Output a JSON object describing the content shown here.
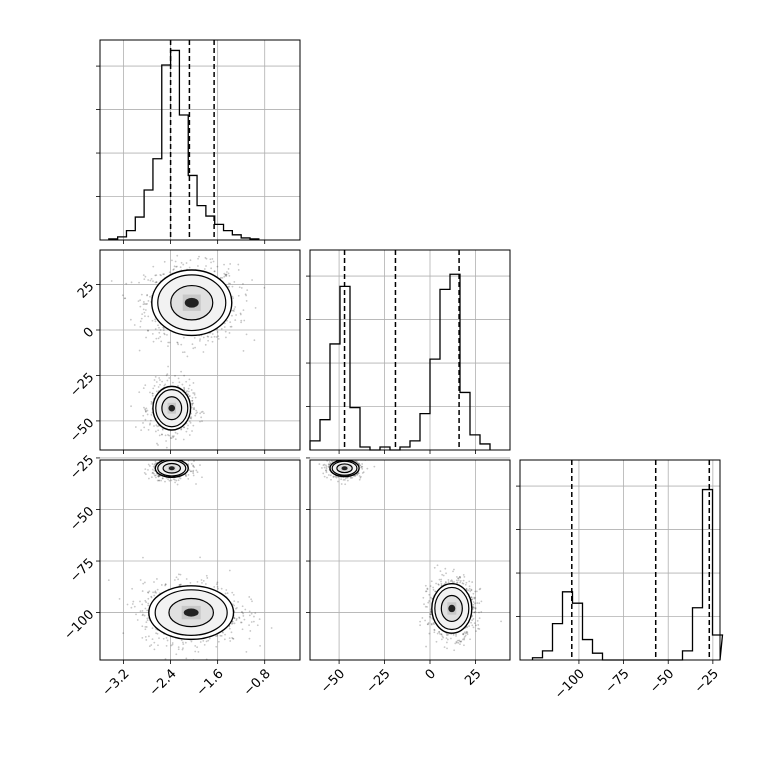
{
  "chart_data": [
    {
      "panel": "hist-param-1",
      "type": "histogram",
      "xlim": [
        -3.6,
        -0.2
      ],
      "bins_start": -3.45,
      "bin_width": 0.15,
      "values": [
        1,
        3,
        9,
        22,
        48,
        78,
        168,
        182,
        120,
        62,
        33,
        23,
        15,
        9,
        5,
        2,
        1
      ],
      "ymax": 192,
      "quantile_lines": [
        -2.4,
        -2.08,
        -1.66
      ],
      "xticks": [
        -3.2,
        -2.4,
        -1.6,
        -0.8
      ],
      "grid": true
    },
    {
      "panel": "hist-param-2",
      "type": "histogram",
      "xlim": [
        -66,
        44
      ],
      "bins_start": -66,
      "bin_width": 5.5,
      "values": [
        3,
        10,
        35,
        54,
        14,
        1,
        0,
        1,
        0,
        1,
        3,
        12,
        30,
        53,
        58,
        19,
        5,
        2
      ],
      "ymax": 66,
      "quantile_lines": [
        -47,
        -19,
        16
      ],
      "yticks": [],
      "grid": true
    },
    {
      "panel": "hist-param-3",
      "type": "histogram",
      "xlim": [
        -133,
        -21
      ],
      "bins_start": -126,
      "bin_width": 5.6,
      "values": [
        1,
        4,
        16,
        30,
        25,
        9,
        3,
        0,
        0,
        0,
        0,
        0,
        0,
        0,
        0,
        4,
        23,
        75,
        11
      ],
      "ymax": 88,
      "quantile_lines": [
        -104,
        -57,
        -27
      ],
      "xticks": [
        -100,
        -75,
        -50,
        -25
      ],
      "grid": true
    },
    {
      "panel": "contour-p1-p2",
      "type": "scatter-contour",
      "xlim": [
        -3.6,
        -0.2
      ],
      "ylim": [
        -66,
        44
      ],
      "yticks": [
        25,
        0,
        -25,
        -50
      ],
      "clusters": [
        {
          "cx": -2.04,
          "cy": 15,
          "sx": 0.34,
          "sy": 9,
          "n": 1000
        },
        {
          "cx": -2.38,
          "cy": -43,
          "sx": 0.16,
          "sy": 6,
          "n": 650
        }
      ],
      "grid": true
    },
    {
      "panel": "contour-p1-p3",
      "type": "scatter-contour",
      "xlim": [
        -3.6,
        -0.2
      ],
      "ylim": [
        -123,
        -26
      ],
      "xticks": [
        -3.2,
        -2.4,
        -1.6,
        -0.8
      ],
      "yticks": [
        -25,
        -50,
        -75,
        -100
      ],
      "clusters": [
        {
          "cx": -2.05,
          "cy": -100,
          "sx": 0.36,
          "sy": 6.5,
          "n": 1000
        },
        {
          "cx": -2.38,
          "cy": -30,
          "sx": 0.14,
          "sy": 2.2,
          "n": 600
        }
      ],
      "grid": true
    },
    {
      "panel": "contour-p2-p3",
      "type": "scatter-contour",
      "xlim": [
        -66,
        44
      ],
      "ylim": [
        -123,
        -26
      ],
      "xticks": [
        -50,
        -25,
        0,
        25
      ],
      "clusters": [
        {
          "cx": 12,
          "cy": -98,
          "sx": 5.5,
          "sy": 6,
          "n": 950
        },
        {
          "cx": -47,
          "cy": -30,
          "sx": 4,
          "sy": 2,
          "n": 550
        }
      ],
      "grid": true
    }
  ]
}
